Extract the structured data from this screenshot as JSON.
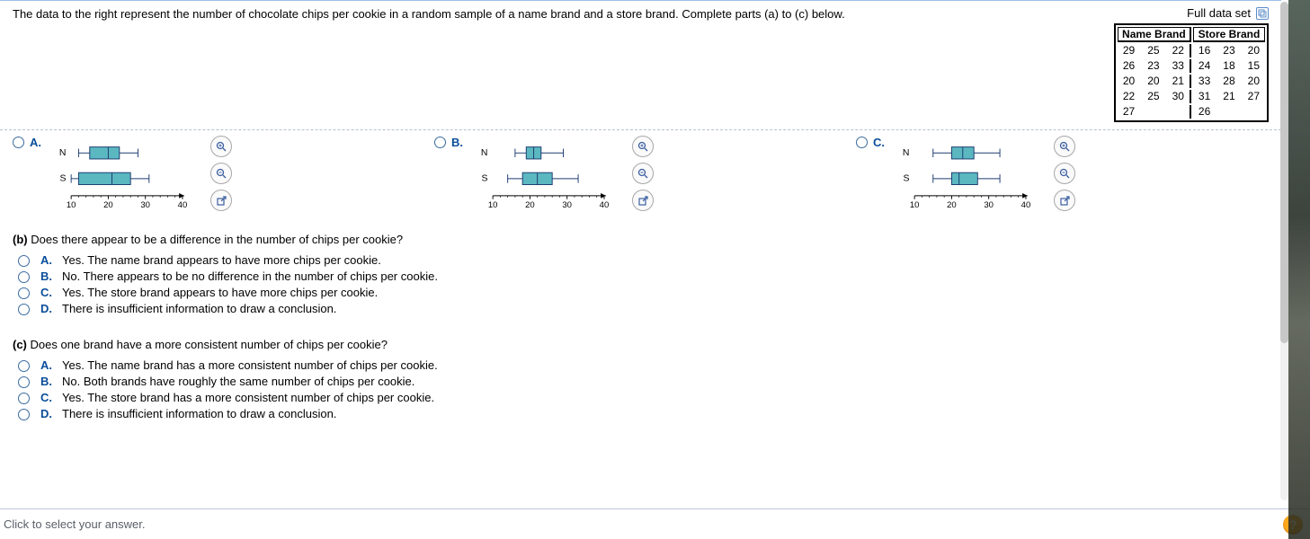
{
  "prompt": "The data to the right represent the number of chocolate chips per cookie in a random sample of a name brand and a store brand. Complete parts (a) to (c) below.",
  "full_data_label": "Full data set",
  "data_table": {
    "headers": [
      "Name Brand",
      "Store Brand"
    ],
    "name_rows": [
      [
        "29",
        "25",
        "22"
      ],
      [
        "26",
        "23",
        "33"
      ],
      [
        "20",
        "20",
        "21"
      ],
      [
        "22",
        "25",
        "30"
      ],
      [
        "27",
        "",
        ""
      ]
    ],
    "store_rows": [
      [
        "16",
        "23",
        "20"
      ],
      [
        "24",
        "18",
        "15"
      ],
      [
        "33",
        "28",
        "20"
      ],
      [
        "31",
        "21",
        "27"
      ],
      [
        "26",
        "",
        ""
      ]
    ]
  },
  "chart_options": {
    "options": [
      "A.",
      "B.",
      "C."
    ],
    "axis": {
      "min": 10,
      "max": 40,
      "ticks": [
        10,
        20,
        30,
        40
      ]
    },
    "box_color": "#5bb7c0",
    "box_stroke": "#1b3a70",
    "labels": {
      "n": "N",
      "s": "S"
    },
    "variants": {
      "A": {
        "N": {
          "min": 12,
          "q1": 15,
          "med": 20,
          "q3": 23,
          "max": 28
        },
        "S": {
          "min": 10,
          "q1": 12,
          "med": 21,
          "q3": 26,
          "max": 31
        }
      },
      "B": {
        "N": {
          "min": 16,
          "q1": 19,
          "med": 21,
          "q3": 23,
          "max": 29
        },
        "S": {
          "min": 14,
          "q1": 18,
          "med": 22,
          "q3": 26,
          "max": 33
        }
      },
      "C": {
        "N": {
          "min": 15,
          "q1": 20,
          "med": 23,
          "q3": 26,
          "max": 33
        },
        "S": {
          "min": 15,
          "q1": 20,
          "med": 22,
          "q3": 27,
          "max": 33
        }
      }
    }
  },
  "part_b": {
    "prompt_prefix": "(b)",
    "prompt": "Does there appear to be a difference in the number of chips per cookie?",
    "answers": [
      {
        "letter": "A.",
        "text": "Yes. The name brand appears to have more chips per cookie."
      },
      {
        "letter": "B.",
        "text": "No. There appears to be no difference in the number of chips per cookie."
      },
      {
        "letter": "C.",
        "text": "Yes. The store brand appears to have more chips per cookie."
      },
      {
        "letter": "D.",
        "text": "There is insufficient information to draw a conclusion."
      }
    ]
  },
  "part_c": {
    "prompt_prefix": "(c)",
    "prompt": "Does one brand have a more consistent number of chips per cookie?",
    "answers": [
      {
        "letter": "A.",
        "text": "Yes. The name brand has a more consistent number of chips per cookie."
      },
      {
        "letter": "B.",
        "text": "No. Both brands have roughly the same number of chips per cookie."
      },
      {
        "letter": "C.",
        "text": "Yes. The store brand has a more consistent number of chips per cookie."
      },
      {
        "letter": "D.",
        "text": "There is insufficient information to draw a conclusion."
      }
    ]
  },
  "footer_text": "Click to select your answer.",
  "help_label": "?"
}
